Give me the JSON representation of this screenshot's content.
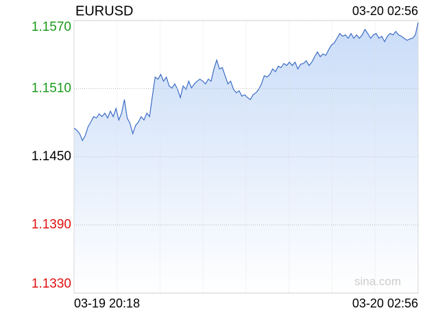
{
  "chart_data": {
    "type": "line",
    "title": "EURUSD",
    "timestamp": "03-20 02:56",
    "x_labels": [
      "03-19 20:18",
      "03-20 02:56"
    ],
    "values": [
      1.14752,
      1.14734,
      1.14704,
      1.14644,
      1.14686,
      1.14764,
      1.14806,
      1.14854,
      1.14842,
      1.14878,
      1.14854,
      1.14884,
      1.14842,
      1.14902,
      1.14854,
      1.14926,
      1.14824,
      1.14884,
      1.15004,
      1.14842,
      1.14794,
      1.14704,
      1.14776,
      1.14806,
      1.14854,
      1.14824,
      1.14884,
      1.14854,
      1.15034,
      1.15202,
      1.15184,
      1.15226,
      1.15166,
      1.15202,
      1.15124,
      1.15106,
      1.15142,
      1.15094,
      1.15022,
      1.15124,
      1.15094,
      1.15166,
      1.15106,
      1.15142,
      1.15166,
      1.15184,
      1.15166,
      1.15142,
      1.15184,
      1.15166,
      1.15274,
      1.15352,
      1.15274,
      1.15286,
      1.15214,
      1.15142,
      1.15166,
      1.15094,
      1.15064,
      1.15082,
      1.15034,
      1.15046,
      1.15022,
      1.15004,
      1.15046,
      1.15064,
      1.15094,
      1.15142,
      1.15214,
      1.15202,
      1.15226,
      1.15274,
      1.1525,
      1.15298,
      1.15286,
      1.15322,
      1.15304,
      1.15334,
      1.15304,
      1.15334,
      1.15274,
      1.15316,
      1.15322,
      1.15346,
      1.15304,
      1.15334,
      1.15382,
      1.15424,
      1.15382,
      1.15406,
      1.15394,
      1.15442,
      1.15484,
      1.15502,
      1.15544,
      1.15586,
      1.15562,
      1.15574,
      1.15544,
      1.15586,
      1.15544,
      1.15574,
      1.15544,
      1.15574,
      1.15622,
      1.15586,
      1.15544,
      1.15574,
      1.15586,
      1.15544,
      1.15562,
      1.15514,
      1.15562,
      1.15586,
      1.15574,
      1.15604,
      1.15574,
      1.15562,
      1.15544,
      1.15526,
      1.15538,
      1.15544,
      1.15574,
      1.15682
    ],
    "color": "#3b6bc4",
    "ylim": [
      1.133,
      1.157
    ],
    "yticks": [
      {
        "value": 1.157,
        "label": "1.1570",
        "color": "#1a9a1a"
      },
      {
        "value": 1.151,
        "label": "1.1510",
        "color": "#1a9a1a"
      },
      {
        "value": 1.145,
        "label": "1.1450",
        "color": "#000000"
      },
      {
        "value": 1.139,
        "label": "1.1390",
        "color": "#e01010"
      },
      {
        "value": 1.133,
        "label": "1.1330",
        "color": "#e01010"
      }
    ],
    "grid": true,
    "watermark": "sina.com"
  }
}
